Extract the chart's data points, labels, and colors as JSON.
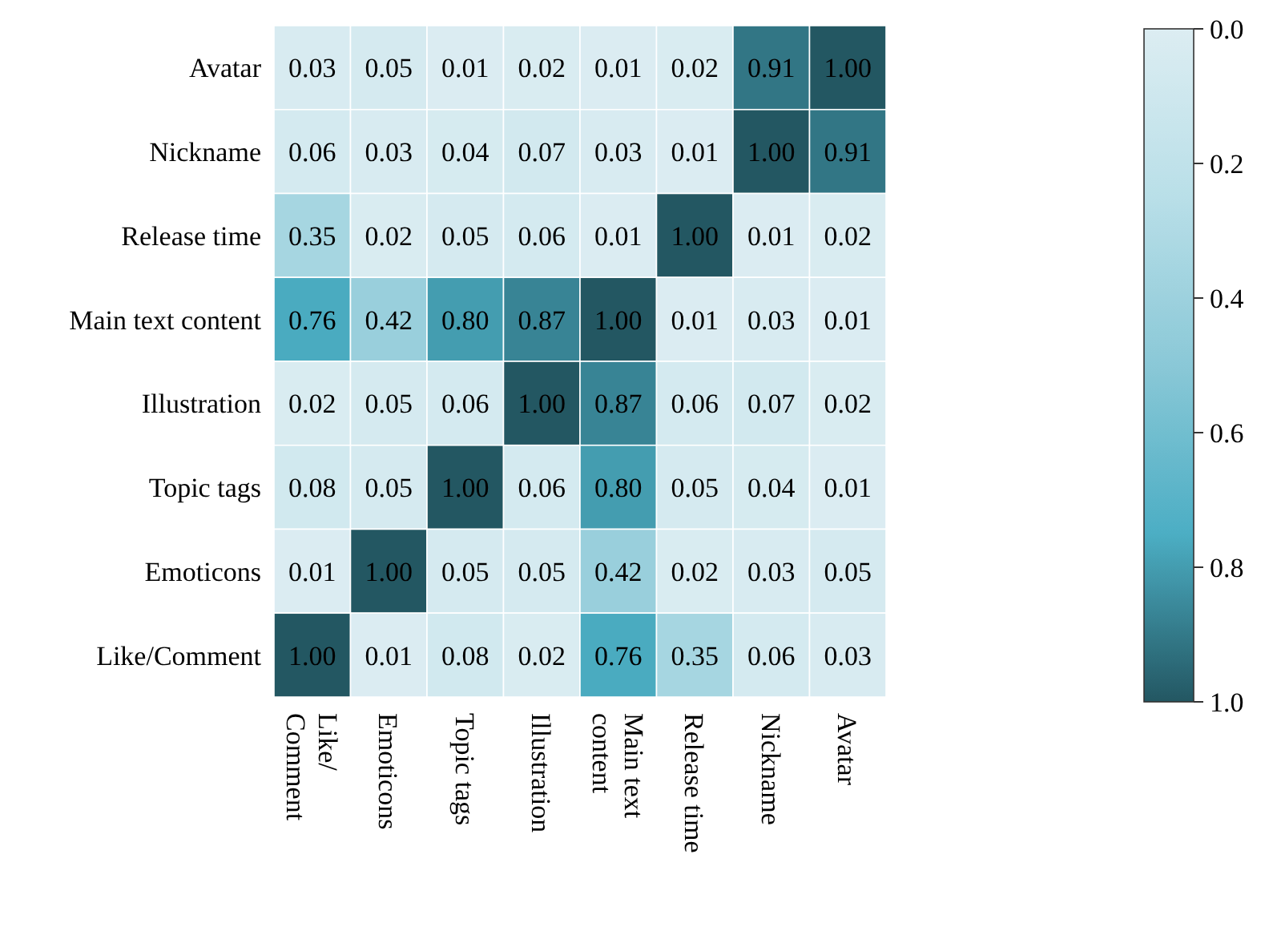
{
  "chart_data": {
    "type": "heatmap",
    "categories": [
      "Like/\nComment",
      "Emoticons",
      "Topic tags",
      "Illustration",
      "Main text\ncontent",
      "Release time",
      "Nickname",
      "Avatar"
    ],
    "y_categories": [
      "Avatar",
      "Nickname",
      "Release time",
      "Main text content",
      "Illustration",
      "Topic tags",
      "Emoticons",
      "Like/Comment"
    ],
    "cells": [
      [
        0.03,
        0.05,
        0.01,
        0.02,
        0.01,
        0.02,
        0.91,
        1.0
      ],
      [
        0.06,
        0.03,
        0.04,
        0.07,
        0.03,
        0.01,
        1.0,
        0.91
      ],
      [
        0.35,
        0.02,
        0.05,
        0.06,
        0.01,
        1.0,
        0.01,
        0.02
      ],
      [
        0.76,
        0.42,
        0.8,
        0.87,
        1.0,
        0.01,
        0.03,
        0.01
      ],
      [
        0.02,
        0.05,
        0.06,
        1.0,
        0.87,
        0.06,
        0.07,
        0.02
      ],
      [
        0.08,
        0.05,
        1.0,
        0.06,
        0.8,
        0.05,
        0.04,
        0.01
      ],
      [
        0.01,
        1.0,
        0.05,
        0.05,
        0.42,
        0.02,
        0.03,
        0.05
      ],
      [
        1.0,
        0.01,
        0.08,
        0.02,
        0.76,
        0.35,
        0.06,
        0.03
      ]
    ],
    "cell_labels": [
      [
        "0.03",
        "0.05",
        "0.01",
        "0.02",
        "0.01",
        "0.02",
        "0.91",
        "1.00"
      ],
      [
        "0.06",
        "0.03",
        "0.04",
        "0.07",
        "0.03",
        "0.01",
        "1.00",
        "0.91"
      ],
      [
        "0.35",
        "0.02",
        "0.05",
        "0.06",
        "0.01",
        "1.00",
        "0.01",
        "0.02"
      ],
      [
        "0.76",
        "0.42",
        "0.80",
        "0.87",
        "1.00",
        "0.01",
        "0.03",
        "0.01"
      ],
      [
        "0.02",
        "0.05",
        "0.06",
        "1.00",
        "0.87",
        "0.06",
        "0.07",
        "0.02"
      ],
      [
        "0.08",
        "0.05",
        "1.00",
        "0.06",
        "0.80",
        "0.05",
        "0.04",
        "0.01"
      ],
      [
        "0.01",
        "1.00",
        "0.05",
        "0.05",
        "0.42",
        "0.02",
        "0.03",
        "0.05"
      ],
      [
        "1.00",
        "0.01",
        "0.08",
        "0.02",
        "0.76",
        "0.35",
        "0.06",
        "0.03"
      ]
    ],
    "colors": [
      "#dcedf2",
      "#b9dfe8",
      "#8ac8d7",
      "#4caec4",
      "#235762"
    ],
    "clim": [
      0,
      1
    ],
    "cticks": [
      {
        "value": 0,
        "label": "0.0"
      },
      {
        "value": 0.2,
        "label": "0.2"
      },
      {
        "value": 0.4,
        "label": "0.4"
      },
      {
        "value": 0.6,
        "label": "0.6"
      },
      {
        "value": 0.8,
        "label": "0.8"
      },
      {
        "value": 1,
        "label": "1.0"
      }
    ],
    "data_labels": true
  }
}
